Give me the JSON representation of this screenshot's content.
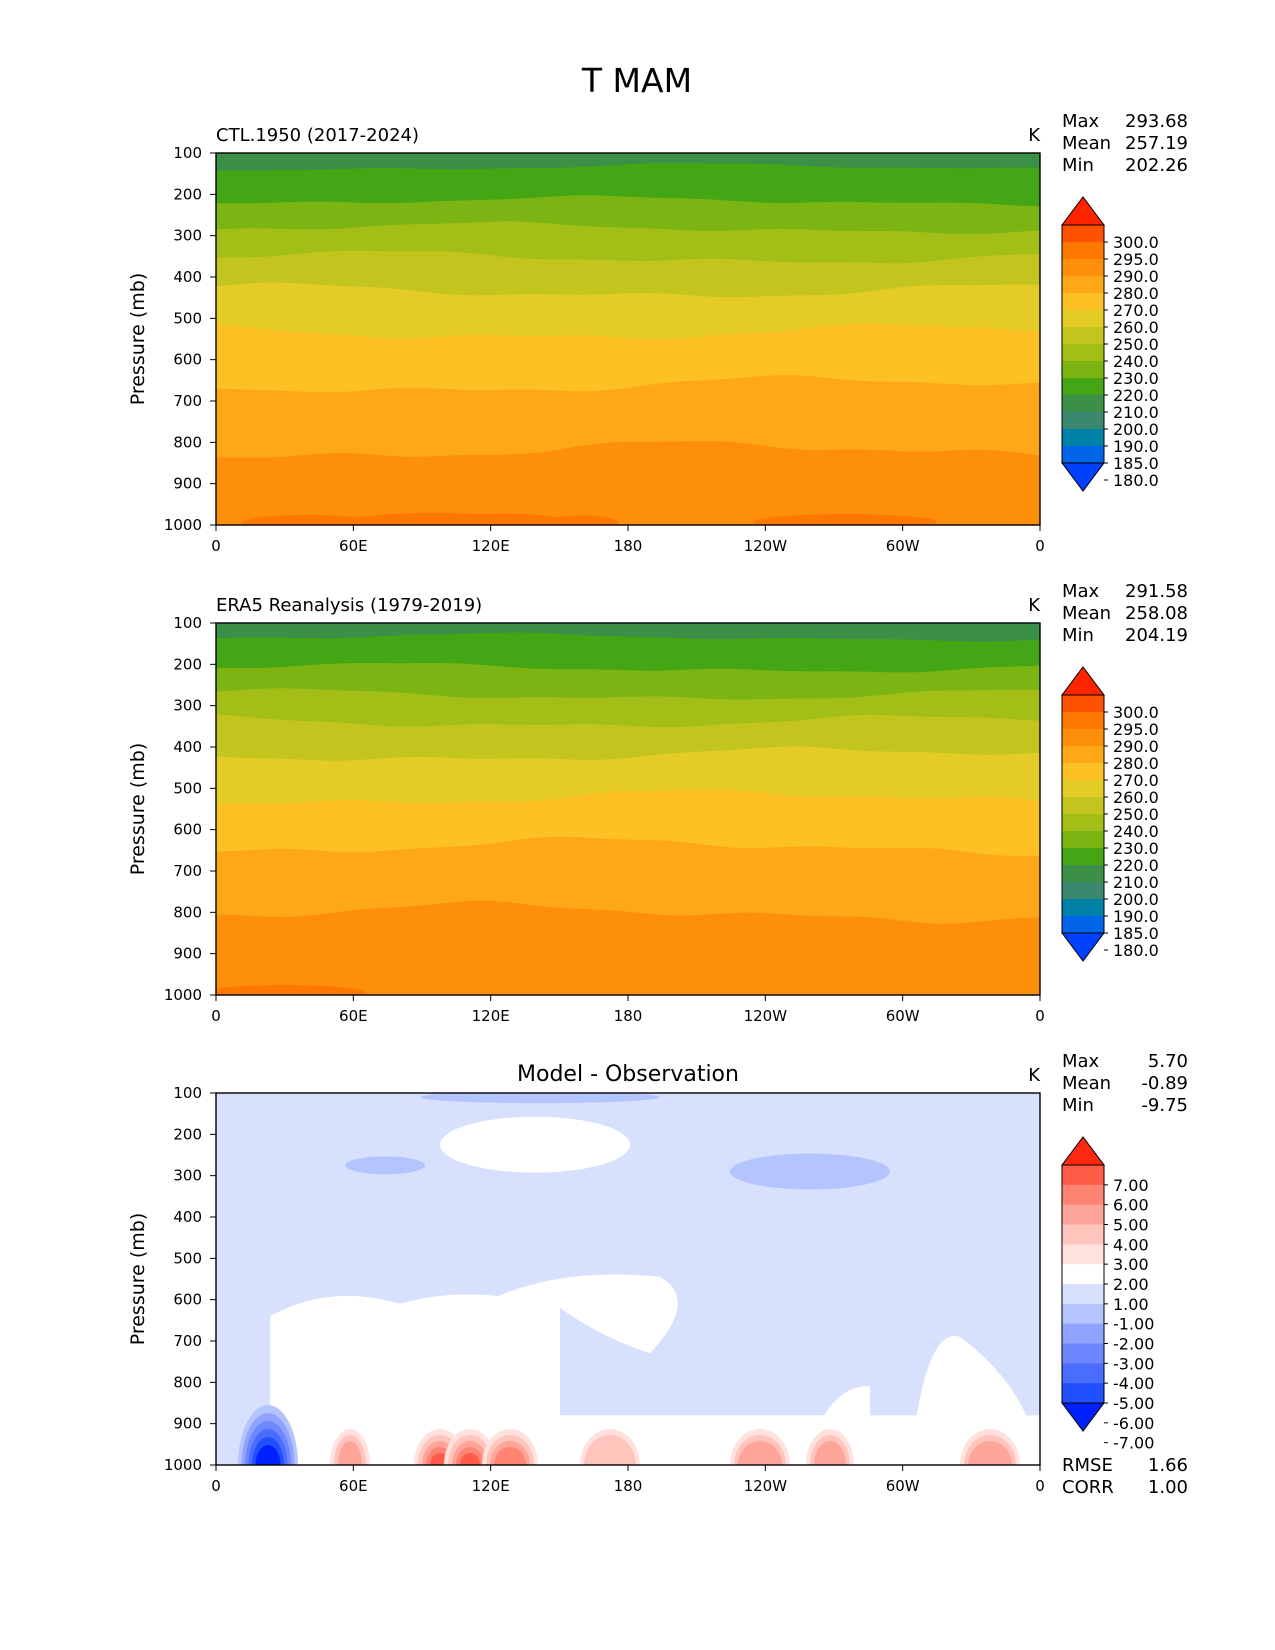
{
  "chart_data": {
    "type": "heatmap",
    "title": "T MAM",
    "colors": {
      "temp_levels": [
        "#0041ff",
        "#0065e6",
        "#0081a8",
        "#3a8870",
        "#3b8f47",
        "#45a615",
        "#7cb414",
        "#a3bf17",
        "#c4c41e",
        "#e5cb26",
        "#fec124",
        "#fea717",
        "#fe8f0a",
        "#fe7800",
        "#fe5200",
        "#ff2400"
      ],
      "diff_levels": [
        "#0020ff",
        "#2150ff",
        "#4a6dff",
        "#6d88ff",
        "#90a4ff",
        "#b4c4ff",
        "#d7e0fc",
        "#ffffff",
        "#ffe2de",
        "#ffc4bc",
        "#ffa498",
        "#ff8474",
        "#ff5c48",
        "#ff2810"
      ]
    },
    "panels": [
      {
        "id": "ctl",
        "title_left": "CTL.1950 (2017-2024)",
        "title_center": "",
        "units": "K",
        "ylabel": "Pressure (mb)",
        "stats": [
          {
            "label": "Max",
            "value": "293.68"
          },
          {
            "label": "Mean",
            "value": "257.19"
          },
          {
            "label": "Min",
            "value": "202.26"
          }
        ],
        "colorbar": [
          "300.0",
          "295.0",
          "290.0",
          "280.0",
          "270.0",
          "260.0",
          "250.0",
          "240.0",
          "230.0",
          "220.0",
          "210.0",
          "200.0",
          "190.0",
          "185.0",
          "180.0"
        ],
        "extra_stats": []
      },
      {
        "id": "era5",
        "title_left": "ERA5 Reanalysis (1979-2019)",
        "title_center": "",
        "units": "K",
        "ylabel": "Pressure (mb)",
        "stats": [
          {
            "label": "Max",
            "value": "291.58"
          },
          {
            "label": "Mean",
            "value": "258.08"
          },
          {
            "label": "Min",
            "value": "204.19"
          }
        ],
        "colorbar": [
          "300.0",
          "295.0",
          "290.0",
          "280.0",
          "270.0",
          "260.0",
          "250.0",
          "240.0",
          "230.0",
          "220.0",
          "210.0",
          "200.0",
          "190.0",
          "185.0",
          "180.0"
        ],
        "extra_stats": []
      },
      {
        "id": "diff",
        "title_left": "",
        "title_center": "Model - Observation",
        "units": "K",
        "ylabel": "Pressure (mb)",
        "stats": [
          {
            "label": "Max",
            "value": "5.70"
          },
          {
            "label": "Mean",
            "value": "-0.89"
          },
          {
            "label": "Min",
            "value": "-9.75"
          }
        ],
        "colorbar": [
          "7.00",
          "6.00",
          "5.00",
          "4.00",
          "3.00",
          "2.00",
          "1.00",
          "-1.00",
          "-2.00",
          "-3.00",
          "-4.00",
          "-5.00",
          "-6.00",
          "-7.00"
        ],
        "extra_stats": [
          {
            "label": "RMSE",
            "value": "1.66"
          },
          {
            "label": "CORR",
            "value": "1.00"
          }
        ]
      }
    ],
    "x_ticks": [
      "0",
      "60E",
      "120E",
      "180",
      "120W",
      "60W",
      "0"
    ],
    "x_values": [
      0,
      60,
      120,
      180,
      240,
      300,
      360
    ],
    "xlim": [
      0,
      360
    ],
    "y_ticks": [
      "100",
      "200",
      "300",
      "400",
      "500",
      "600",
      "700",
      "800",
      "900",
      "1000"
    ],
    "y_values": [
      100,
      200,
      300,
      400,
      500,
      600,
      700,
      800,
      900,
      1000
    ],
    "ylim": [
      100,
      1000
    ],
    "temp_bands": {
      "ctl": [
        {
          "level": 4,
          "top": 100,
          "bottom": 136
        },
        {
          "level": 5,
          "top": 136,
          "bottom": 218
        },
        {
          "level": 6,
          "top": 218,
          "bottom": 283
        },
        {
          "level": 7,
          "top": 283,
          "bottom": 354
        },
        {
          "level": 8,
          "top": 354,
          "bottom": 435
        },
        {
          "level": 9,
          "top": 435,
          "bottom": 535
        },
        {
          "level": 10,
          "top": 535,
          "bottom": 663
        },
        {
          "level": 11,
          "top": 663,
          "bottom": 822
        },
        {
          "level": 12,
          "top": 822,
          "bottom": 1000
        }
      ],
      "era5": [
        {
          "level": 4,
          "top": 100,
          "bottom": 136
        },
        {
          "level": 5,
          "top": 136,
          "bottom": 210
        },
        {
          "level": 6,
          "top": 210,
          "bottom": 275
        },
        {
          "level": 7,
          "top": 275,
          "bottom": 340
        },
        {
          "level": 8,
          "top": 340,
          "bottom": 420
        },
        {
          "level": 9,
          "top": 420,
          "bottom": 525
        },
        {
          "level": 10,
          "top": 525,
          "bottom": 643
        },
        {
          "level": 11,
          "top": 643,
          "bottom": 802
        },
        {
          "level": 12,
          "top": 802,
          "bottom": 1000
        }
      ]
    }
  }
}
